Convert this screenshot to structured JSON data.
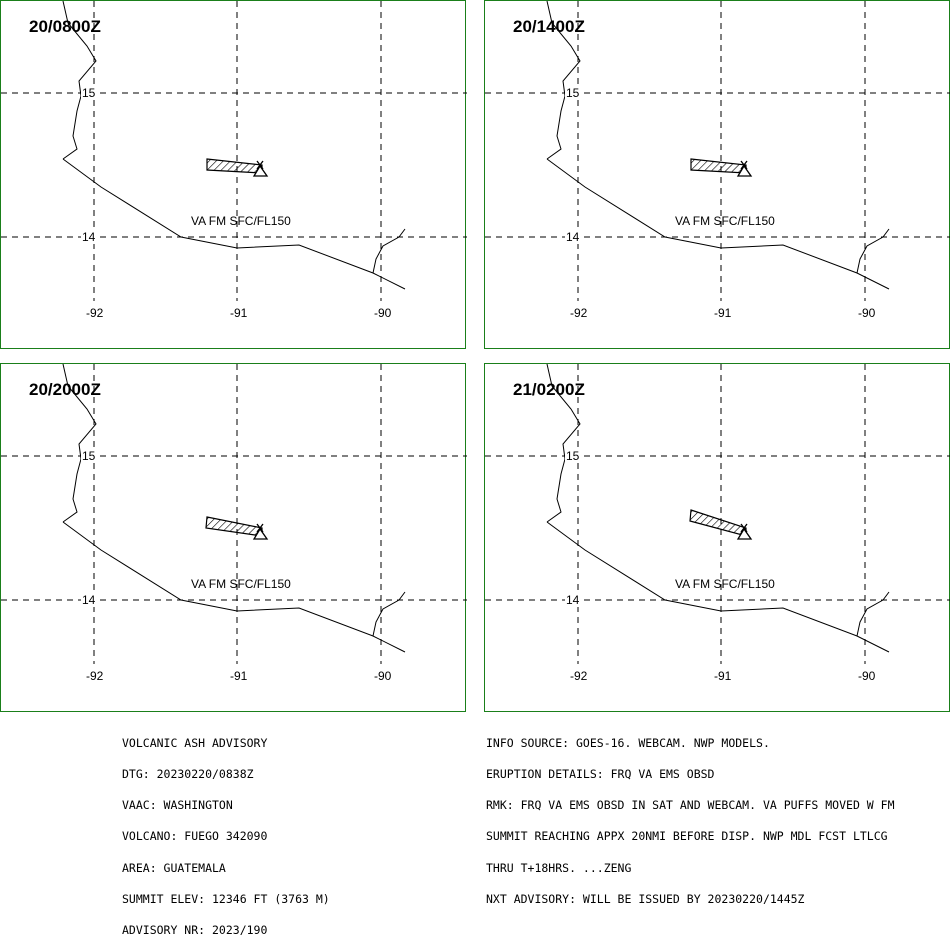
{
  "panels": [
    {
      "time": "20/0800Z",
      "va_label": "VA FM SFC/FL150"
    },
    {
      "time": "20/1400Z",
      "va_label": "VA FM SFC/FL150"
    },
    {
      "time": "20/2000Z",
      "va_label": "VA FM SFC/FL150"
    },
    {
      "time": "21/0200Z",
      "va_label": "VA FM SFC/FL150"
    }
  ],
  "lat_labels": [
    "15",
    "14"
  ],
  "lon_labels": [
    "-92",
    "-91",
    "-90"
  ],
  "advisory_left": [
    "VOLCANIC ASH ADVISORY",
    "DTG: 20230220/0838Z",
    "VAAC: WASHINGTON",
    "VOLCANO: FUEGO 342090",
    "AREA: GUATEMALA",
    "SUMMIT ELEV: 12346 FT (3763 M)",
    "ADVISORY NR: 2023/190"
  ],
  "advisory_right": [
    "INFO SOURCE: GOES-16. WEBCAM. NWP MODELS.",
    "ERUPTION DETAILS: FRQ VA EMS OBSD",
    "RMK: FRQ VA EMS OBSD IN SAT AND WEBCAM. VA PUFFS MOVED W FM",
    "SUMMIT REACHING APPX 20NMI BEFORE DISP. NWP MDL FCST LTLCG",
    "THRU T+18HRS. ...ZENG",
    "NXT ADVISORY: WILL BE ISSUED BY 20230220/1445Z"
  ],
  "colors": {
    "panel_border": "#1a7f1a",
    "lines": "#000000"
  }
}
